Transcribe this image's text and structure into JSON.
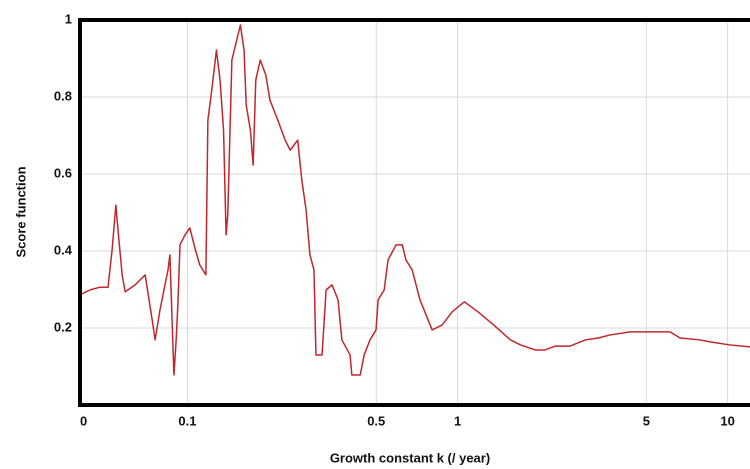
{
  "chart_data": {
    "type": "line",
    "x_label": "Growth constant k (/ year)",
    "y_label": "Score function",
    "log_x": true,
    "grid": true,
    "xlim": [
      0.04,
      12.1
    ],
    "ylim": [
      0,
      1
    ],
    "xticks": [
      {
        "value": 0.04,
        "label": "0"
      },
      0.1,
      0.5,
      1,
      5,
      10
    ],
    "yticks": [
      0.2,
      0.4,
      0.6,
      0.8,
      1
    ],
    "series": [
      {
        "color": "#c0272d",
        "x": [
          0.04,
          0.0436,
          0.0474,
          0.0508,
          0.0526,
          0.0543,
          0.0553,
          0.0573,
          0.0588,
          0.064,
          0.0697,
          0.074,
          0.0759,
          0.0791,
          0.0847,
          0.0861,
          0.0877,
          0.0891,
          0.0908,
          0.0923,
          0.0938,
          0.098,
          0.102,
          0.107,
          0.111,
          0.117,
          0.119,
          0.123,
          0.128,
          0.132,
          0.136,
          0.139,
          0.141,
          0.146,
          0.157,
          0.162,
          0.165,
          0.171,
          0.175,
          0.179,
          0.186,
          0.195,
          0.202,
          0.216,
          0.23,
          0.24,
          0.256,
          0.265,
          0.275,
          0.284,
          0.294,
          0.299,
          0.315,
          0.326,
          0.343,
          0.361,
          0.373,
          0.4,
          0.406,
          0.436,
          0.451,
          0.474,
          0.499,
          0.508,
          0.535,
          0.553,
          0.592,
          0.624,
          0.644,
          0.679,
          0.726,
          0.778,
          0.805,
          0.877,
          0.955,
          1.06,
          1.19,
          1.36,
          1.57,
          1.71,
          1.94,
          2.11,
          2.3,
          2.61,
          2.97,
          3.32,
          3.67,
          4.36,
          6.12,
          6.67,
          7.91,
          8.61,
          10.2,
          12.1
        ],
        "values": [
          0.286,
          0.299,
          0.306,
          0.306,
          0.403,
          0.519,
          0.455,
          0.338,
          0.294,
          0.312,
          0.338,
          0.221,
          0.169,
          0.247,
          0.351,
          0.39,
          0.221,
          0.078,
          0.169,
          0.273,
          0.416,
          0.442,
          0.46,
          0.403,
          0.364,
          0.338,
          0.74,
          0.818,
          0.922,
          0.844,
          0.714,
          0.442,
          0.494,
          0.896,
          0.987,
          0.922,
          0.779,
          0.714,
          0.623,
          0.844,
          0.896,
          0.857,
          0.792,
          0.74,
          0.688,
          0.662,
          0.688,
          0.584,
          0.506,
          0.39,
          0.351,
          0.13,
          0.13,
          0.299,
          0.312,
          0.273,
          0.169,
          0.13,
          0.078,
          0.078,
          0.13,
          0.169,
          0.195,
          0.273,
          0.299,
          0.377,
          0.416,
          0.416,
          0.377,
          0.351,
          0.273,
          0.221,
          0.195,
          0.208,
          0.242,
          0.268,
          0.242,
          0.208,
          0.169,
          0.156,
          0.143,
          0.143,
          0.153,
          0.153,
          0.169,
          0.174,
          0.182,
          0.19,
          0.19,
          0.174,
          0.169,
          0.164,
          0.156,
          0.151
        ]
      }
    ]
  }
}
